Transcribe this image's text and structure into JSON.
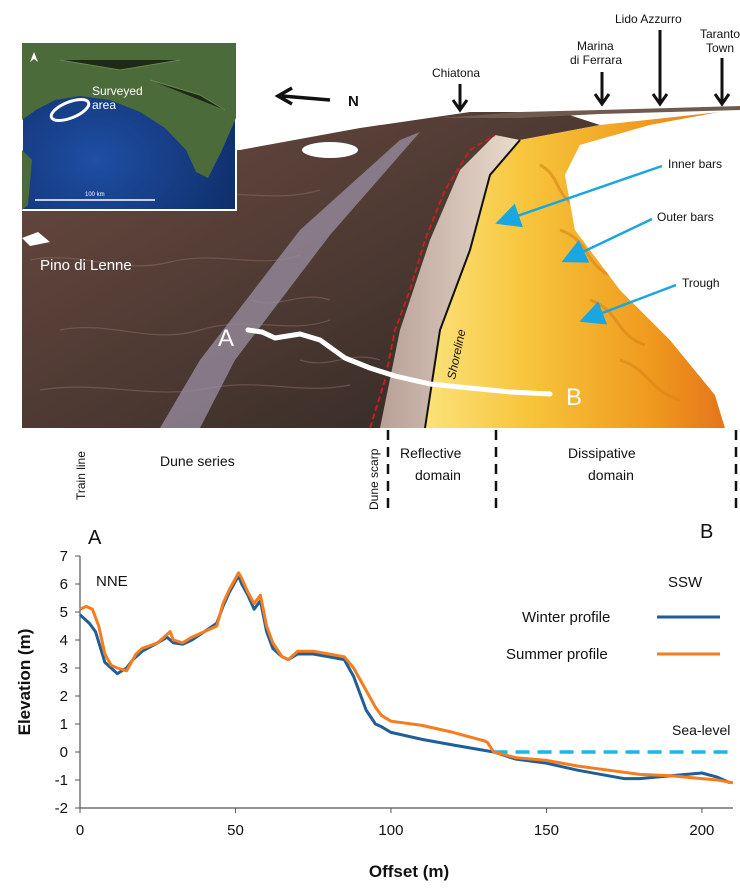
{
  "panel_top": {
    "inset": {
      "surveyed_area": "Surveyed area",
      "scale_label": "100 km",
      "compass_icon": "north-arrow-icon"
    },
    "north_label": "N",
    "place_labels": [
      "Chiatona",
      "Marina di Ferrara",
      "Lido Azzurro",
      "Taranto Town",
      "Pino di Lenne"
    ],
    "feature_labels": [
      "Inner bars",
      "Outer bars",
      "Trough",
      "Shoreline"
    ],
    "transect": {
      "start": "A",
      "end": "B"
    },
    "domain_labels": {
      "train_line": "Train line",
      "dune_series": "Dune series",
      "dune_scarp": "Dune scarp",
      "reflective": "Reflective domain",
      "dissipative": "Dissipative domain"
    },
    "colors": {
      "sea": "#ffffff",
      "beach_dissipative": "#f2a21e",
      "dunes": "#5a4038",
      "arrow_blue": "#1aa6e0"
    }
  },
  "panel_bottom": {
    "corner_left": "A",
    "corner_right": "B"
  },
  "chart_data": {
    "type": "line",
    "title": "",
    "xlabel": "Offset (m)",
    "ylabel": "Elevation (m)",
    "xlim": [
      0,
      210
    ],
    "ylim": [
      -2,
      7
    ],
    "xticks": [
      0,
      50,
      100,
      150,
      200
    ],
    "yticks": [
      -2,
      -1,
      0,
      1,
      2,
      3,
      4,
      5,
      6,
      7
    ],
    "grid": false,
    "legend_position": "right",
    "annotations": {
      "left": "NNE",
      "right": "SSW",
      "sea_level": "Sea-level"
    },
    "sea_level": {
      "y": 0,
      "x_start": 133,
      "x_end": 210,
      "color": "#19b6e8",
      "style": "dashed"
    },
    "series": [
      {
        "name": "Winter profile",
        "color": "#1f5f99",
        "x": [
          0,
          3,
          5,
          8,
          10,
          12,
          15,
          17,
          20,
          25,
          28,
          30,
          33,
          36,
          40,
          44,
          46,
          48,
          50,
          51,
          52,
          54,
          56,
          58,
          60,
          62,
          65,
          67,
          70,
          75,
          80,
          85,
          88,
          92,
          95,
          97,
          100,
          110,
          120,
          133,
          140,
          150,
          160,
          170,
          175,
          180,
          190,
          195,
          200,
          205,
          209
        ],
        "y": [
          4.9,
          4.6,
          4.3,
          3.2,
          3.0,
          2.8,
          3.0,
          3.3,
          3.6,
          3.9,
          4.1,
          3.9,
          3.85,
          4.0,
          4.3,
          4.6,
          5.2,
          5.7,
          6.1,
          6.3,
          6.0,
          5.6,
          5.1,
          5.4,
          4.3,
          3.7,
          3.4,
          3.3,
          3.5,
          3.5,
          3.4,
          3.3,
          2.7,
          1.5,
          1.0,
          0.9,
          0.7,
          0.45,
          0.25,
          0.0,
          -0.25,
          -0.4,
          -0.65,
          -0.85,
          -0.95,
          -0.95,
          -0.85,
          -0.8,
          -0.75,
          -0.9,
          -1.1
        ]
      },
      {
        "name": "Summer profile",
        "color": "#f57c1f",
        "x": [
          0,
          2,
          4,
          6,
          8,
          10,
          12,
          15,
          18,
          20,
          25,
          28,
          29,
          30,
          33,
          36,
          40,
          44,
          46,
          48,
          50,
          51,
          52,
          54,
          56,
          58,
          60,
          62,
          65,
          67,
          70,
          75,
          80,
          85,
          88,
          92,
          95,
          97,
          100,
          110,
          120,
          130,
          131,
          133,
          140,
          150,
          160,
          170,
          180,
          190,
          200,
          205,
          210
        ],
        "y": [
          5.1,
          5.2,
          5.1,
          4.5,
          3.5,
          3.1,
          3.0,
          2.9,
          3.5,
          3.7,
          3.9,
          4.2,
          4.3,
          4.0,
          3.9,
          4.1,
          4.3,
          4.5,
          5.3,
          5.8,
          6.2,
          6.4,
          6.2,
          5.7,
          5.3,
          5.6,
          4.5,
          3.9,
          3.4,
          3.3,
          3.6,
          3.6,
          3.5,
          3.4,
          3.0,
          2.2,
          1.6,
          1.3,
          1.1,
          0.95,
          0.7,
          0.4,
          0.35,
          0.0,
          -0.2,
          -0.3,
          -0.5,
          -0.65,
          -0.8,
          -0.85,
          -0.95,
          -1.0,
          -1.1
        ]
      }
    ]
  }
}
